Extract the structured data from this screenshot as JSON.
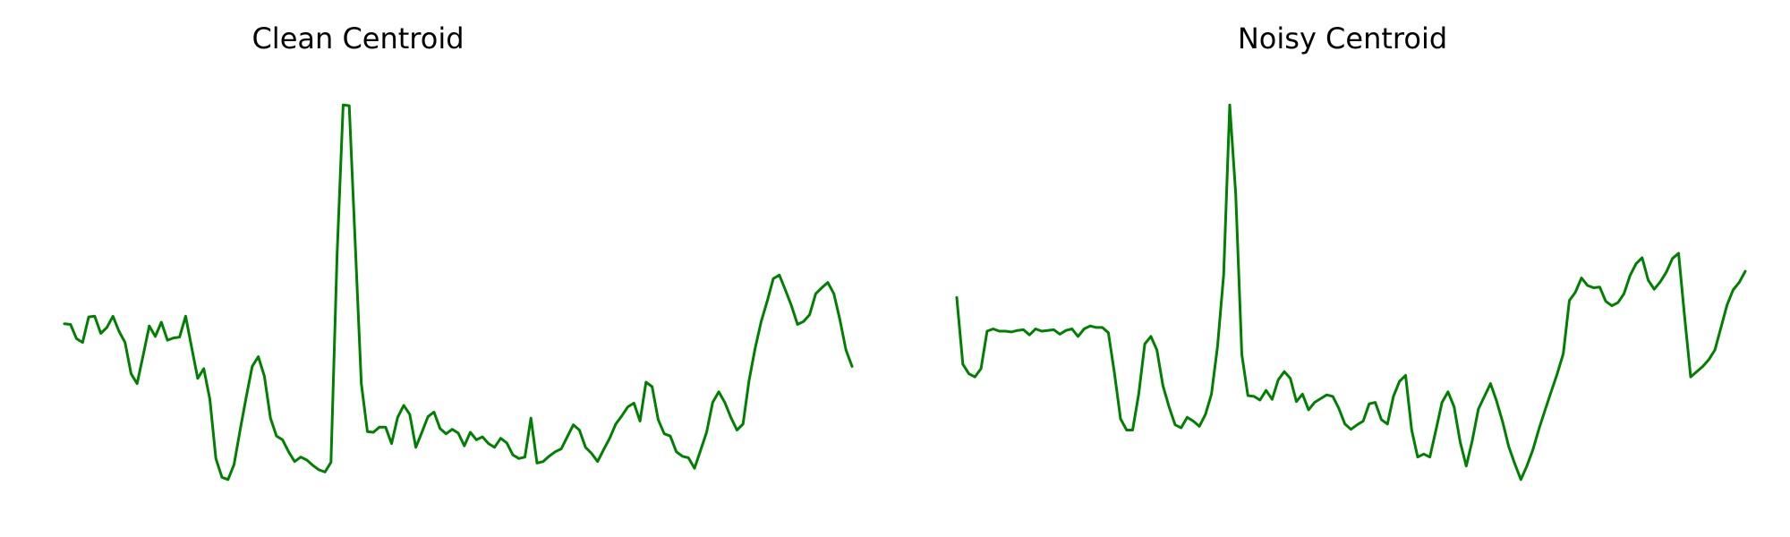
{
  "chart_data": [
    {
      "type": "line",
      "title": "Clean Centroid",
      "xlabel": "",
      "ylabel": "",
      "xlim": [
        0,
        130
      ],
      "ylim": [
        -2.2,
        3.2
      ],
      "grid": false,
      "axes_visible": false,
      "line_color": "#008000",
      "x": [
        0,
        1,
        2,
        3,
        4,
        5,
        6,
        7,
        8,
        9,
        10,
        11,
        12,
        13,
        14,
        15,
        16,
        17,
        18,
        19,
        20,
        21,
        22,
        23,
        24,
        25,
        26,
        27,
        28,
        29,
        30,
        31,
        32,
        33,
        34,
        35,
        36,
        37,
        38,
        39,
        40,
        41,
        42,
        43,
        44,
        45,
        46,
        47,
        48,
        49,
        50,
        51,
        52,
        53,
        54,
        55,
        56,
        57,
        58,
        59,
        60,
        61,
        62,
        63,
        64,
        65,
        66,
        67,
        68,
        69,
        70,
        71,
        72,
        73,
        74,
        75,
        76,
        77,
        78,
        79,
        80,
        81,
        82,
        83,
        84,
        85,
        86,
        87,
        88,
        89,
        90,
        91,
        92,
        93,
        94,
        95,
        96,
        97,
        98,
        99,
        100,
        101,
        102,
        103,
        104,
        105,
        106,
        107,
        108,
        109,
        110,
        111,
        112,
        113,
        114,
        115,
        116,
        117,
        118,
        119,
        120,
        121,
        122,
        123,
        124,
        125,
        126,
        127,
        128,
        129,
        130
      ],
      "values": [
        0.05,
        0.04,
        -0.15,
        -0.2,
        0.14,
        0.15,
        -0.08,
        0.0,
        0.15,
        -0.05,
        -0.2,
        -0.62,
        -0.75,
        -0.37,
        0.02,
        -0.12,
        0.07,
        -0.17,
        -0.14,
        -0.13,
        0.15,
        -0.27,
        -0.68,
        -0.55,
        -0.96,
        -1.75,
        -2.0,
        -2.03,
        -1.83,
        -1.37,
        -0.93,
        -0.52,
        -0.39,
        -0.65,
        -1.21,
        -1.45,
        -1.5,
        -1.66,
        -1.79,
        -1.73,
        -1.77,
        -1.84,
        -1.9,
        -1.93,
        -1.8,
        0.96,
        2.97,
        2.96,
        1.12,
        -0.75,
        -1.39,
        -1.4,
        -1.33,
        -1.33,
        -1.55,
        -1.2,
        -1.04,
        -1.16,
        -1.6,
        -1.4,
        -1.19,
        -1.13,
        -1.35,
        -1.42,
        -1.36,
        -1.41,
        -1.58,
        -1.4,
        -1.5,
        -1.46,
        -1.55,
        -1.6,
        -1.48,
        -1.54,
        -1.7,
        -1.75,
        -1.73,
        -1.21,
        -1.81,
        -1.79,
        -1.72,
        -1.66,
        -1.62,
        -1.46,
        -1.3,
        -1.37,
        -1.6,
        -1.68,
        -1.79,
        -1.63,
        -1.48,
        -1.29,
        -1.18,
        -1.06,
        -1.01,
        -1.25,
        -0.73,
        -0.79,
        -1.23,
        -1.42,
        -1.45,
        -1.66,
        -1.72,
        -1.74,
        -1.88,
        -1.64,
        -1.4,
        -1.0,
        -0.86,
        -1.0,
        -1.2,
        -1.37,
        -1.29,
        -0.71,
        -0.28,
        0.08,
        0.35,
        0.65,
        0.7,
        0.5,
        0.29,
        0.04,
        0.08,
        0.17,
        0.45,
        0.53,
        0.6,
        0.45,
        0.1,
        -0.3,
        -0.52
      ]
    },
    {
      "type": "line",
      "title": "Noisy Centroid",
      "xlabel": "",
      "ylabel": "",
      "xlim": [
        0,
        130
      ],
      "ylim": [
        -2.2,
        3.2
      ],
      "grid": false,
      "axes_visible": false,
      "line_color": "#008000",
      "x": [
        0,
        1,
        2,
        3,
        4,
        5,
        6,
        7,
        8,
        9,
        10,
        11,
        12,
        13,
        14,
        15,
        16,
        17,
        18,
        19,
        20,
        21,
        22,
        23,
        24,
        25,
        26,
        27,
        28,
        29,
        30,
        31,
        32,
        33,
        34,
        35,
        36,
        37,
        38,
        39,
        40,
        41,
        42,
        43,
        44,
        45,
        46,
        47,
        48,
        49,
        50,
        51,
        52,
        53,
        54,
        55,
        56,
        57,
        58,
        59,
        60,
        61,
        62,
        63,
        64,
        65,
        66,
        67,
        68,
        69,
        70,
        71,
        72,
        73,
        74,
        75,
        76,
        77,
        78,
        79,
        80,
        81,
        82,
        83,
        84,
        85,
        86,
        87,
        88,
        89,
        90,
        91,
        92,
        93,
        94,
        95,
        96,
        97,
        98,
        99,
        100,
        101,
        102,
        103,
        104,
        105,
        106,
        107,
        108,
        109,
        110,
        111,
        112,
        113,
        114,
        115,
        116,
        117,
        118,
        119,
        120,
        121,
        122,
        123,
        124,
        125,
        126,
        127,
        128,
        129,
        130
      ],
      "values": [
        0.4,
        -0.49,
        -0.62,
        -0.66,
        -0.55,
        -0.05,
        -0.02,
        -0.05,
        -0.05,
        -0.06,
        -0.04,
        -0.03,
        -0.1,
        -0.02,
        -0.05,
        -0.04,
        -0.03,
        -0.09,
        -0.04,
        -0.02,
        -0.12,
        -0.02,
        0.02,
        0.0,
        0.0,
        -0.07,
        -0.61,
        -1.22,
        -1.37,
        -1.37,
        -0.89,
        -0.22,
        -0.12,
        -0.3,
        -0.78,
        -1.06,
        -1.3,
        -1.34,
        -1.2,
        -1.25,
        -1.32,
        -1.16,
        -0.89,
        -0.25,
        0.7,
        2.97,
        1.78,
        -0.36,
        -0.91,
        -0.92,
        -0.97,
        -0.84,
        -0.96,
        -0.7,
        -0.59,
        -0.68,
        -0.99,
        -0.89,
        -1.1,
        -1.0,
        -0.95,
        -0.9,
        -0.92,
        -1.08,
        -1.29,
        -1.36,
        -1.3,
        -1.25,
        -1.02,
        -1.0,
        -1.23,
        -1.29,
        -0.92,
        -0.72,
        -0.64,
        -1.37,
        -1.73,
        -1.69,
        -1.73,
        -1.37,
        -1.0,
        -0.86,
        -1.06,
        -1.53,
        -1.85,
        -1.51,
        -1.09,
        -0.92,
        -0.75,
        -0.98,
        -1.26,
        -1.59,
        -1.82,
        -2.03,
        -1.85,
        -1.63,
        -1.35,
        -1.1,
        -0.86,
        -0.62,
        -0.35,
        0.36,
        0.47,
        0.66,
        0.56,
        0.53,
        0.54,
        0.35,
        0.29,
        0.33,
        0.45,
        0.69,
        0.85,
        0.93,
        0.63,
        0.51,
        0.61,
        0.74,
        0.92,
        0.99,
        0.15,
        -0.66,
        -0.59,
        -0.52,
        -0.43,
        -0.3,
        0.0,
        0.3,
        0.5,
        0.6,
        0.75
      ]
    }
  ]
}
